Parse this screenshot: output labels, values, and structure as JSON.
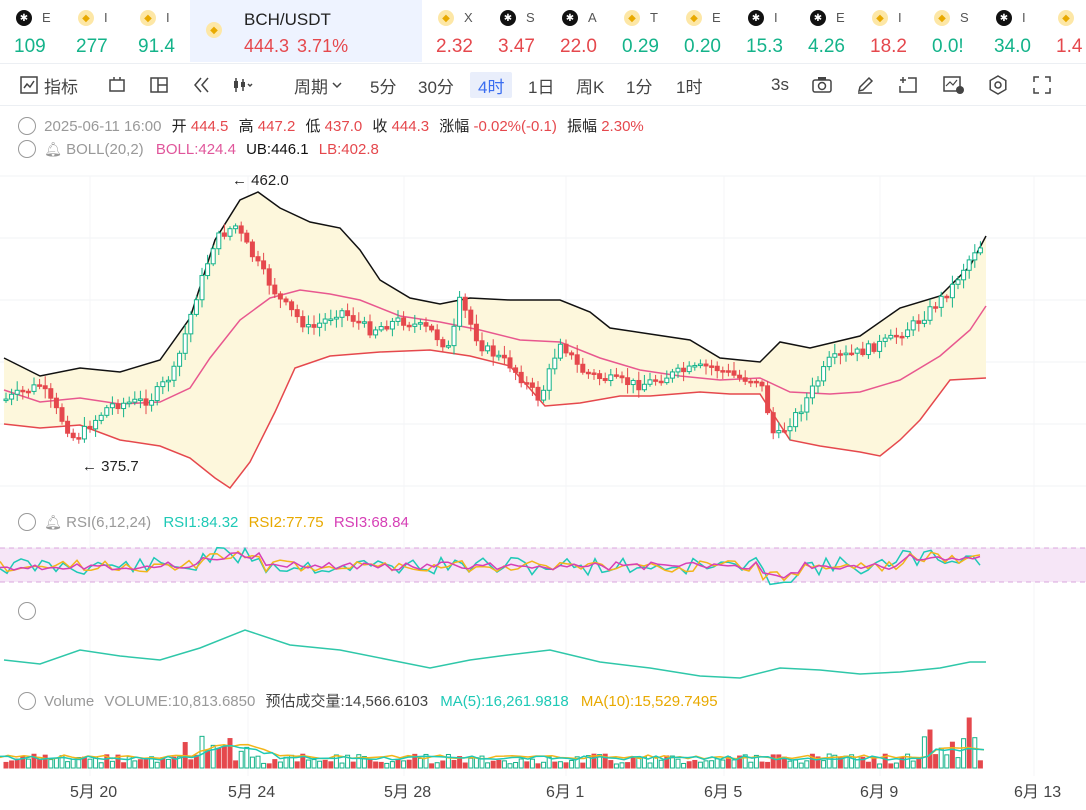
{
  "tickers": [
    {
      "name": "E",
      "price": "109",
      "dir": "up",
      "icon": "okx",
      "x": 8
    },
    {
      "name": "I",
      "price": "277",
      "dir": "up",
      "icon": "bnb",
      "x": 70
    },
    {
      "name": "I",
      "price": "91.4",
      "dir": "up",
      "icon": "bnb",
      "x": 132
    },
    {
      "name": "BCH/USDT",
      "price": "444.3",
      "change": "3.71%",
      "dir": "dn",
      "icon": "bnb",
      "x": 190,
      "active": true
    },
    {
      "name": "X",
      "price": "2.32",
      "dir": "dn",
      "icon": "bnb",
      "x": 430
    },
    {
      "name": "S",
      "price": "3.47",
      "dir": "dn",
      "icon": "okx",
      "x": 492
    },
    {
      "name": "A",
      "price": "22.0",
      "dir": "dn",
      "icon": "okx",
      "x": 554
    },
    {
      "name": "T",
      "price": "0.29",
      "dir": "up",
      "icon": "bnb",
      "x": 616
    },
    {
      "name": "E",
      "price": "0.20",
      "dir": "up",
      "icon": "bnb",
      "x": 678
    },
    {
      "name": "I",
      "price": "15.3",
      "dir": "up",
      "icon": "okx",
      "x": 740
    },
    {
      "name": "E",
      "price": "4.26",
      "dir": "up",
      "icon": "okx",
      "x": 802
    },
    {
      "name": "I",
      "price": "18.2",
      "dir": "dn",
      "icon": "bnb",
      "x": 864
    },
    {
      "name": "S",
      "price": "0.0!",
      "dir": "up",
      "icon": "bnb",
      "x": 926
    },
    {
      "name": "I",
      "price": "34.0",
      "dir": "up",
      "icon": "okx",
      "x": 988
    },
    {
      "name": "",
      "price": "1.4",
      "dir": "dn",
      "icon": "bnb",
      "x": 1050
    }
  ],
  "toolbar": {
    "indicators": "指标",
    "period": "周期",
    "intervals": [
      "5分",
      "30分",
      "4时",
      "1日",
      "周K",
      "1分",
      "1时"
    ],
    "selected_interval": "4时",
    "refresh": "3s"
  },
  "ohlc_info": {
    "date": "2025-06-11 16:00",
    "open_label": "开",
    "open": "444.5",
    "high_label": "高",
    "high": "447.2",
    "low_label": "低",
    "low": "437.0",
    "close_label": "收",
    "close": "444.3",
    "change_label": "涨幅",
    "change": "-0.02%(-0.1)",
    "amp_label": "振幅",
    "amp": "2.30%"
  },
  "boll": {
    "title": "BOLL(20,2)",
    "boll": "BOLL:424.4",
    "ub": "UB:446.1",
    "lb": "LB:402.8"
  },
  "max_label": "462.0",
  "min_label": "375.7",
  "rsi": {
    "title": "RSI(6,12,24)",
    "rsi1": "RSI1:84.32",
    "rsi2": "RSI2:77.75",
    "rsi3": "RSI3:68.84"
  },
  "volume": {
    "title": "Volume",
    "vol": "VOLUME:10,813.6850",
    "est_label": "预估成交量:",
    "est": "14,566.6103",
    "ma5": "MA(5):16,261.9818",
    "ma10": "MA(10):15,529.7495"
  },
  "x_axis": [
    "5月 20",
    "5月 24",
    "5月 28",
    "6月 1",
    "6月 5",
    "6月 9",
    "6月 13"
  ],
  "colors": {
    "up": "#14b38a",
    "down": "#e5484d",
    "boll": "#e8588f",
    "ub": "#111111",
    "band": "#fdf7dc",
    "rsi1": "#1ec9b6",
    "rsi2": "#f2b51a",
    "rsi3": "#d63fb6"
  }
}
